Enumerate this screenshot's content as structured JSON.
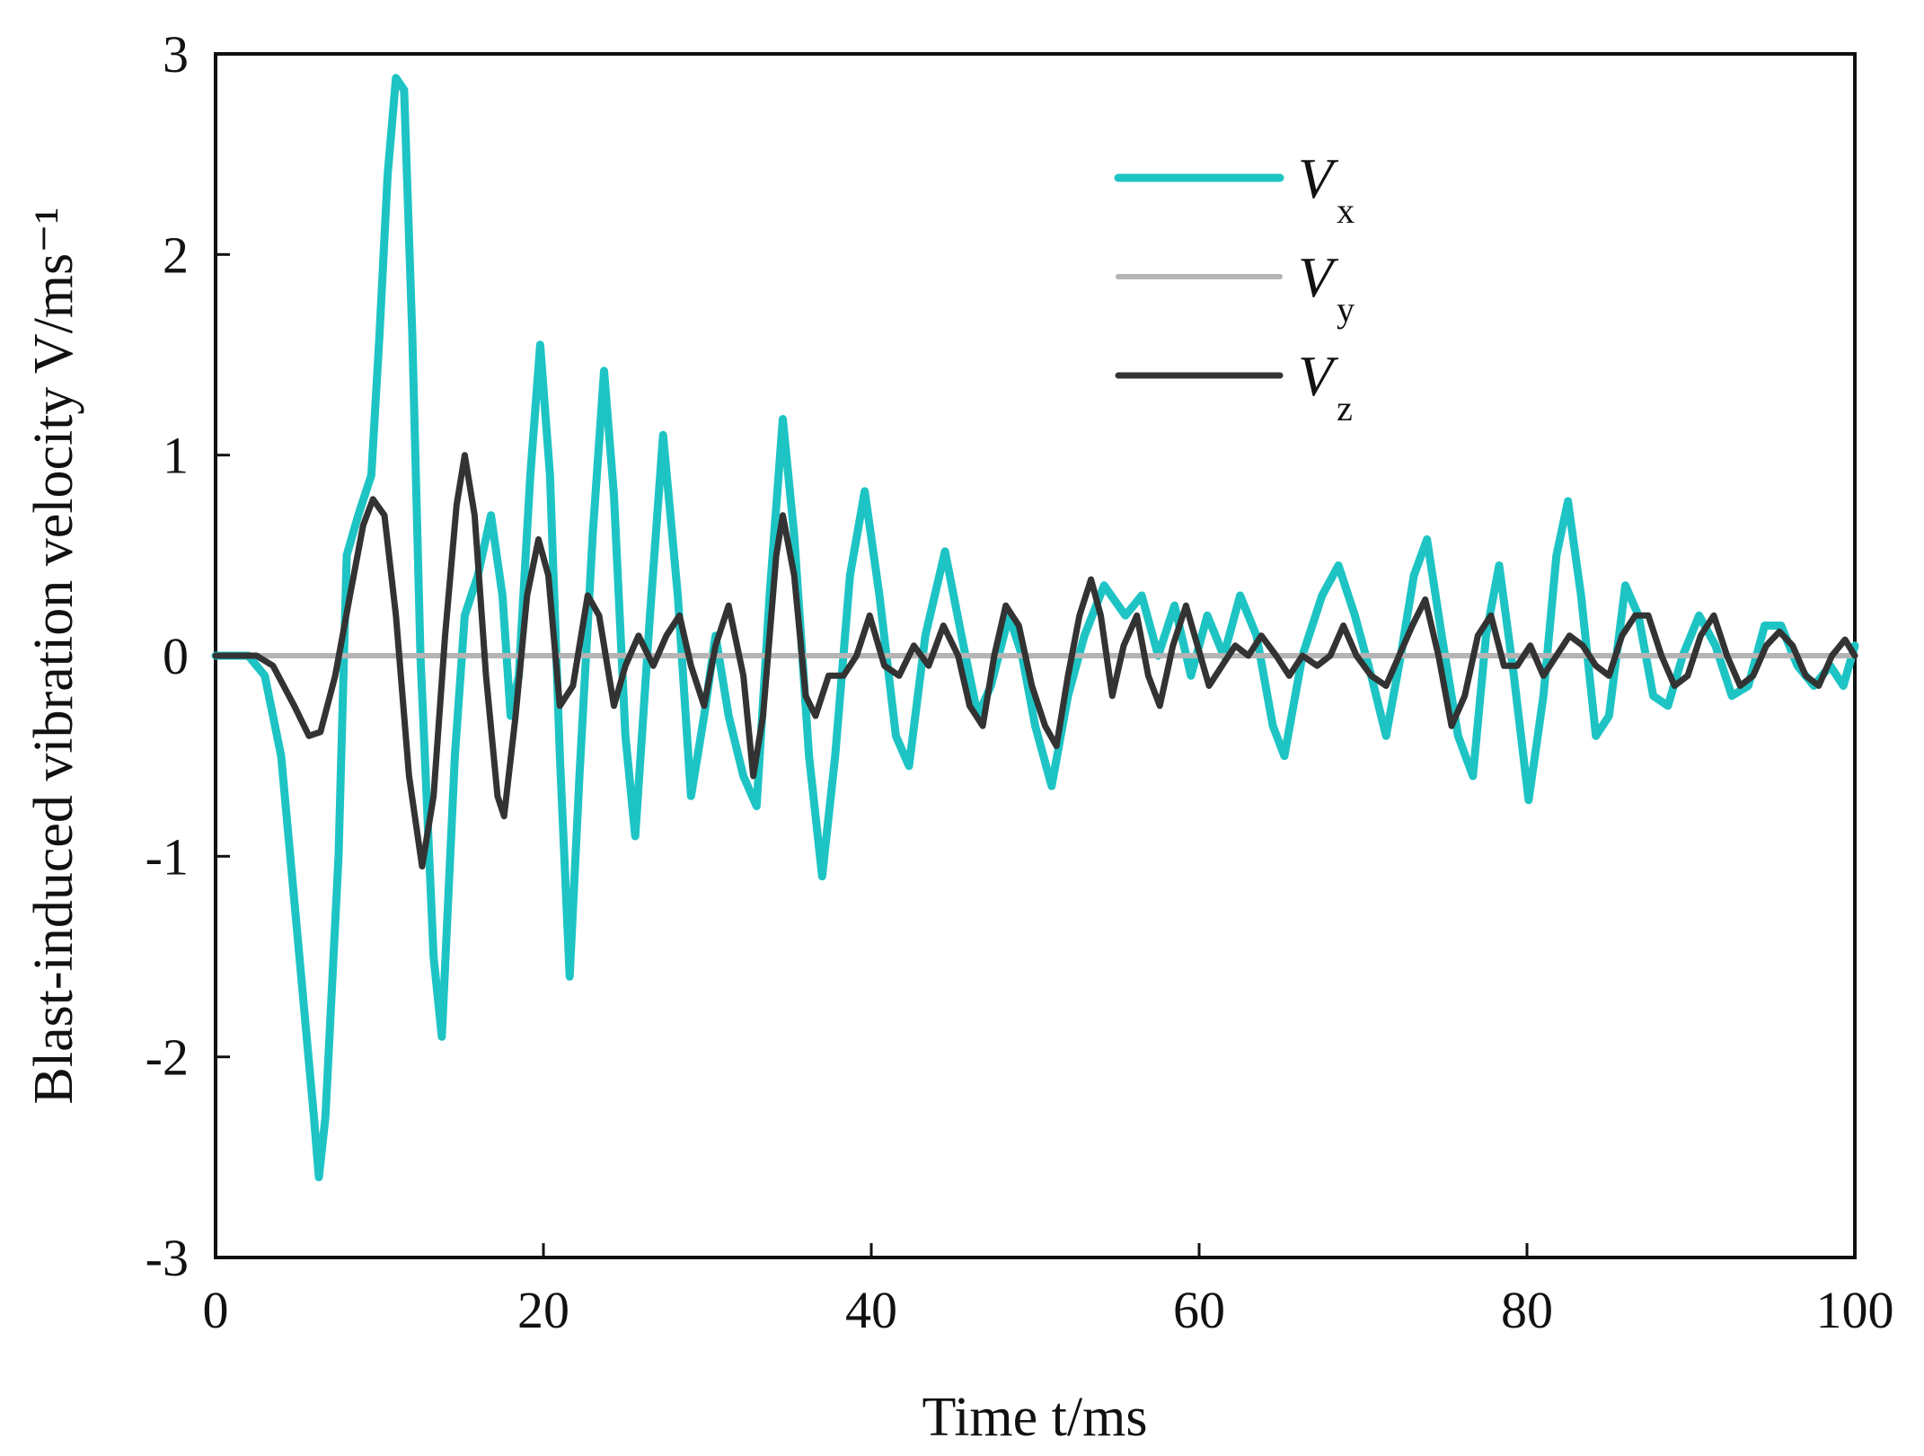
{
  "chart_data": {
    "type": "line",
    "xlabel": "Time  t/ms",
    "ylabel": "Blast-induced vibration velocity V/ms⁻¹",
    "xlim": [
      0,
      100
    ],
    "ylim": [
      -3,
      3
    ],
    "x_ticks": [
      "0",
      "20",
      "40",
      "60",
      "80",
      "100"
    ],
    "y_ticks": [
      "3",
      "2",
      "1",
      "0",
      "-1",
      "-2",
      "-3"
    ],
    "legend_position": "top-right",
    "grid": false,
    "series": [
      {
        "name": "V",
        "subscript": "x",
        "color": "#1ec4c4",
        "points": [
          [
            0,
            0
          ],
          [
            2,
            0
          ],
          [
            3,
            -0.1
          ],
          [
            4,
            -0.5
          ],
          [
            5,
            -1.4
          ],
          [
            6,
            -2.3
          ],
          [
            6.3,
            -2.6
          ],
          [
            6.7,
            -2.3
          ],
          [
            7.5,
            -1
          ],
          [
            8,
            0.5
          ],
          [
            8.7,
            0.7
          ],
          [
            9.5,
            0.9
          ],
          [
            10,
            1.6
          ],
          [
            10.5,
            2.4
          ],
          [
            11,
            2.88
          ],
          [
            11.5,
            2.82
          ],
          [
            12,
            1.6
          ],
          [
            12.5,
            0
          ],
          [
            13.3,
            -1.5
          ],
          [
            13.8,
            -1.9
          ],
          [
            14.6,
            -0.5
          ],
          [
            15.2,
            0.2
          ],
          [
            16,
            0.4
          ],
          [
            16.8,
            0.7
          ],
          [
            17.5,
            0.3
          ],
          [
            18,
            -0.3
          ],
          [
            18.5,
            -0.1
          ],
          [
            19.2,
            0.9
          ],
          [
            19.8,
            1.55
          ],
          [
            20.4,
            0.9
          ],
          [
            21,
            -0.5
          ],
          [
            21.6,
            -1.6
          ],
          [
            22.2,
            -0.6
          ],
          [
            23,
            0.6
          ],
          [
            23.7,
            1.42
          ],
          [
            24.3,
            0.8
          ],
          [
            25,
            -0.4
          ],
          [
            25.6,
            -0.9
          ],
          [
            26.5,
            0.2
          ],
          [
            27.3,
            1.1
          ],
          [
            28.2,
            0.3
          ],
          [
            29,
            -0.7
          ],
          [
            29.8,
            -0.3
          ],
          [
            30.5,
            0.1
          ],
          [
            31.3,
            -0.3
          ],
          [
            32.2,
            -0.6
          ],
          [
            33,
            -0.75
          ],
          [
            33.8,
            0.3
          ],
          [
            34.6,
            1.18
          ],
          [
            35.3,
            0.6
          ],
          [
            36.2,
            -0.5
          ],
          [
            37,
            -1.1
          ],
          [
            37.8,
            -0.5
          ],
          [
            38.7,
            0.4
          ],
          [
            39.6,
            0.82
          ],
          [
            40.5,
            0.3
          ],
          [
            41.5,
            -0.4
          ],
          [
            42.3,
            -0.55
          ],
          [
            43.3,
            0.1
          ],
          [
            44.5,
            0.52
          ],
          [
            45.5,
            0.1
          ],
          [
            46.5,
            -0.3
          ],
          [
            47.3,
            -0.15
          ],
          [
            48.4,
            0.2
          ],
          [
            49.2,
            0
          ],
          [
            50,
            -0.35
          ],
          [
            51,
            -0.65
          ],
          [
            52,
            -0.2
          ],
          [
            53,
            0.1
          ],
          [
            54.2,
            0.35
          ],
          [
            55.5,
            0.2
          ],
          [
            56.5,
            0.3
          ],
          [
            57.5,
            0
          ],
          [
            58.5,
            0.25
          ],
          [
            59.5,
            -0.1
          ],
          [
            60.5,
            0.2
          ],
          [
            61.5,
            0
          ],
          [
            62.5,
            0.3
          ],
          [
            63.5,
            0.1
          ],
          [
            64.5,
            -0.35
          ],
          [
            65.2,
            -0.5
          ],
          [
            66.3,
            0
          ],
          [
            67.5,
            0.3
          ],
          [
            68.5,
            0.45
          ],
          [
            69.5,
            0.2
          ],
          [
            70.5,
            -0.1
          ],
          [
            71.4,
            -0.4
          ],
          [
            72.3,
            0
          ],
          [
            73.1,
            0.4
          ],
          [
            73.9,
            0.58
          ],
          [
            74.8,
            0.1
          ],
          [
            75.8,
            -0.4
          ],
          [
            76.7,
            -0.6
          ],
          [
            77.5,
            0.1
          ],
          [
            78.3,
            0.45
          ],
          [
            79.2,
            -0.1
          ],
          [
            80.1,
            -0.72
          ],
          [
            81,
            -0.2
          ],
          [
            81.8,
            0.5
          ],
          [
            82.5,
            0.77
          ],
          [
            83.3,
            0.3
          ],
          [
            84.2,
            -0.4
          ],
          [
            85,
            -0.3
          ],
          [
            86,
            0.35
          ],
          [
            86.8,
            0.2
          ],
          [
            87.7,
            -0.2
          ],
          [
            88.6,
            -0.25
          ],
          [
            89.5,
            0
          ],
          [
            90.5,
            0.2
          ],
          [
            91.5,
            0.05
          ],
          [
            92.5,
            -0.2
          ],
          [
            93.5,
            -0.15
          ],
          [
            94.5,
            0.15
          ],
          [
            95.5,
            0.15
          ],
          [
            96.5,
            -0.05
          ],
          [
            97.5,
            -0.15
          ],
          [
            98.5,
            -0.05
          ],
          [
            99.3,
            -0.15
          ],
          [
            100,
            0.05
          ]
        ]
      },
      {
        "name": "V",
        "subscript": "y",
        "color": "#b4b4b4",
        "points": [
          [
            0,
            0
          ],
          [
            100,
            0
          ]
        ]
      },
      {
        "name": "V",
        "subscript": "z",
        "color": "#333333",
        "points": [
          [
            0,
            0
          ],
          [
            2.5,
            0
          ],
          [
            3.5,
            -0.05
          ],
          [
            4.8,
            -0.25
          ],
          [
            5.7,
            -0.4
          ],
          [
            6.4,
            -0.38
          ],
          [
            7.3,
            -0.1
          ],
          [
            8.2,
            0.3
          ],
          [
            9,
            0.65
          ],
          [
            9.6,
            0.78
          ],
          [
            10.3,
            0.7
          ],
          [
            11,
            0.2
          ],
          [
            11.8,
            -0.6
          ],
          [
            12.6,
            -1.05
          ],
          [
            13.3,
            -0.7
          ],
          [
            14,
            0.1
          ],
          [
            14.7,
            0.75
          ],
          [
            15.2,
            1
          ],
          [
            15.8,
            0.7
          ],
          [
            16.5,
            -0.1
          ],
          [
            17.2,
            -0.7
          ],
          [
            17.6,
            -0.8
          ],
          [
            18.3,
            -0.3
          ],
          [
            19,
            0.3
          ],
          [
            19.7,
            0.58
          ],
          [
            20.3,
            0.4
          ],
          [
            21,
            -0.25
          ],
          [
            21.8,
            -0.15
          ],
          [
            22.7,
            0.3
          ],
          [
            23.4,
            0.2
          ],
          [
            24.3,
            -0.25
          ],
          [
            25,
            -0.05
          ],
          [
            25.8,
            0.1
          ],
          [
            26.7,
            -0.05
          ],
          [
            27.5,
            0.1
          ],
          [
            28.3,
            0.2
          ],
          [
            29,
            -0.05
          ],
          [
            29.8,
            -0.25
          ],
          [
            30.5,
            0.05
          ],
          [
            31.3,
            0.25
          ],
          [
            32.2,
            -0.1
          ],
          [
            32.8,
            -0.6
          ],
          [
            33.4,
            -0.3
          ],
          [
            34.2,
            0.5
          ],
          [
            34.6,
            0.7
          ],
          [
            35.3,
            0.4
          ],
          [
            36,
            -0.2
          ],
          [
            36.6,
            -0.3
          ],
          [
            37.4,
            -0.1
          ],
          [
            38.3,
            -0.1
          ],
          [
            39.1,
            0
          ],
          [
            39.9,
            0.2
          ],
          [
            40.8,
            -0.05
          ],
          [
            41.7,
            -0.1
          ],
          [
            42.6,
            0.05
          ],
          [
            43.5,
            -0.05
          ],
          [
            44.4,
            0.15
          ],
          [
            45.3,
            0
          ],
          [
            46,
            -0.25
          ],
          [
            46.8,
            -0.35
          ],
          [
            47.5,
            0
          ],
          [
            48.2,
            0.25
          ],
          [
            49,
            0.15
          ],
          [
            49.8,
            -0.15
          ],
          [
            50.6,
            -0.35
          ],
          [
            51.3,
            -0.45
          ],
          [
            52,
            -0.1
          ],
          [
            52.7,
            0.2
          ],
          [
            53.4,
            0.38
          ],
          [
            54,
            0.2
          ],
          [
            54.7,
            -0.2
          ],
          [
            55.4,
            0.05
          ],
          [
            56.2,
            0.2
          ],
          [
            56.9,
            -0.1
          ],
          [
            57.6,
            -0.25
          ],
          [
            58.4,
            0.05
          ],
          [
            59.2,
            0.25
          ],
          [
            59.9,
            0.05
          ],
          [
            60.6,
            -0.15
          ],
          [
            61.4,
            -0.05
          ],
          [
            62.2,
            0.05
          ],
          [
            63,
            0
          ],
          [
            63.8,
            0.1
          ],
          [
            64.7,
            0
          ],
          [
            65.5,
            -0.1
          ],
          [
            66.3,
            0
          ],
          [
            67.2,
            -0.05
          ],
          [
            68,
            0
          ],
          [
            68.8,
            0.15
          ],
          [
            69.6,
            0
          ],
          [
            70.5,
            -0.1
          ],
          [
            71.4,
            -0.15
          ],
          [
            72.2,
            0
          ],
          [
            73,
            0.15
          ],
          [
            73.8,
            0.28
          ],
          [
            74.6,
            0
          ],
          [
            75.4,
            -0.35
          ],
          [
            76.2,
            -0.2
          ],
          [
            77,
            0.1
          ],
          [
            77.8,
            0.2
          ],
          [
            78.6,
            -0.05
          ],
          [
            79.4,
            -0.05
          ],
          [
            80.2,
            0.05
          ],
          [
            81,
            -0.1
          ],
          [
            81.8,
            0
          ],
          [
            82.6,
            0.1
          ],
          [
            83.4,
            0.05
          ],
          [
            84.2,
            -0.05
          ],
          [
            85,
            -0.1
          ],
          [
            85.8,
            0.1
          ],
          [
            86.6,
            0.2
          ],
          [
            87.4,
            0.2
          ],
          [
            88.2,
            0
          ],
          [
            89,
            -0.15
          ],
          [
            89.8,
            -0.1
          ],
          [
            90.6,
            0.1
          ],
          [
            91.4,
            0.2
          ],
          [
            92.2,
            0
          ],
          [
            93,
            -0.15
          ],
          [
            93.8,
            -0.1
          ],
          [
            94.6,
            0.05
          ],
          [
            95.4,
            0.12
          ],
          [
            96.2,
            0.05
          ],
          [
            97,
            -0.1
          ],
          [
            97.8,
            -0.15
          ],
          [
            98.6,
            0
          ],
          [
            99.4,
            0.08
          ],
          [
            100,
            0
          ]
        ]
      }
    ]
  }
}
